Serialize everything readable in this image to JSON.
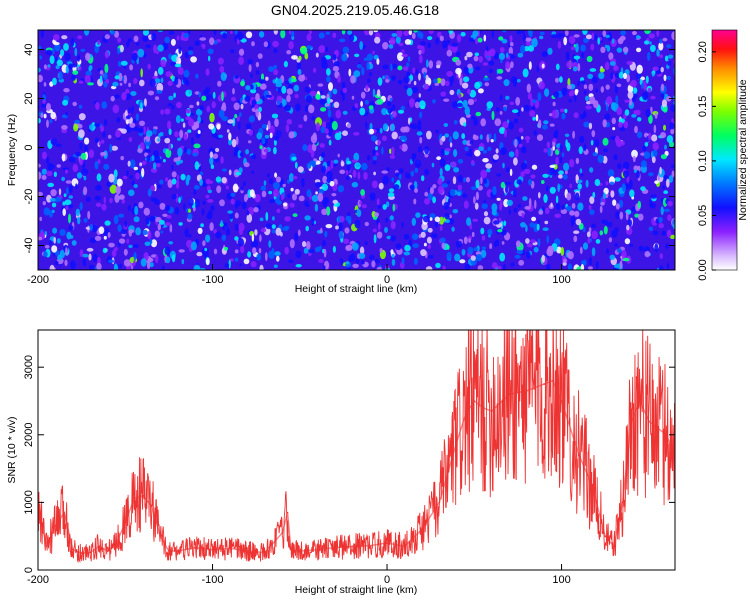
{
  "title": "GN04.2025.219.05.46.G18",
  "chart_data": [
    {
      "type": "heatmap",
      "xlabel": "Height of straight line (km)",
      "ylabel": "Frequency (Hz)",
      "xlim": [
        -200,
        165
      ],
      "ylim": [
        -50,
        48
      ],
      "xticks": [
        -200,
        -100,
        0,
        100
      ],
      "yticks": [
        -40,
        -20,
        0,
        20,
        40
      ],
      "colorbar": {
        "label": "Normalized spectral amplitude",
        "range": [
          0,
          0.22
        ],
        "ticks": [
          0.0,
          0.05,
          0.1,
          0.15,
          0.2
        ],
        "tick_labels": [
          "0.00",
          "0.05",
          "0.10",
          "0.15",
          "0.20"
        ],
        "colors": [
          "#ffffff",
          "#c8a0ff",
          "#7a00ff",
          "#0000ff",
          "#0088ff",
          "#00ffff",
          "#00ff44",
          "#88ff00",
          "#ffff00",
          "#ff8800",
          "#ff0000",
          "#ff0088"
        ]
      }
    },
    {
      "type": "line",
      "xlabel": "Height of straight line (km)",
      "ylabel": "SNR (10 * v/v)",
      "xlim": [
        -200,
        165
      ],
      "ylim": [
        0,
        3550
      ],
      "xticks": [
        -200,
        -100,
        0,
        100
      ],
      "yticks": [
        0,
        1000,
        2000,
        3000
      ],
      "series": [
        {
          "color": "#ee3333",
          "x": [
            -200,
            -195,
            -190,
            -185,
            -180,
            -175,
            -170,
            -165,
            -160,
            -155,
            -150,
            -145,
            -140,
            -135,
            -130,
            -125,
            -120,
            -110,
            -100,
            -90,
            -80,
            -70,
            -60,
            -57,
            -55,
            -50,
            -40,
            -30,
            -20,
            -10,
            0,
            10,
            20,
            30,
            40,
            45,
            50,
            55,
            60,
            70,
            80,
            90,
            95,
            100,
            110,
            115,
            120,
            125,
            130,
            135,
            140,
            145,
            150,
            155,
            160,
            165
          ],
          "y": [
            900,
            350,
            650,
            850,
            300,
            250,
            260,
            350,
            280,
            400,
            700,
            1050,
            1100,
            950,
            500,
            280,
            280,
            330,
            300,
            320,
            280,
            260,
            550,
            850,
            300,
            280,
            300,
            330,
            350,
            360,
            400,
            350,
            600,
            1000,
            1900,
            2300,
            2500,
            2400,
            2350,
            2600,
            2650,
            2750,
            2800,
            2500,
            1700,
            1400,
            1000,
            500,
            350,
            1000,
            2200,
            2500,
            2200,
            2100,
            2000,
            1700
          ]
        }
      ]
    }
  ]
}
